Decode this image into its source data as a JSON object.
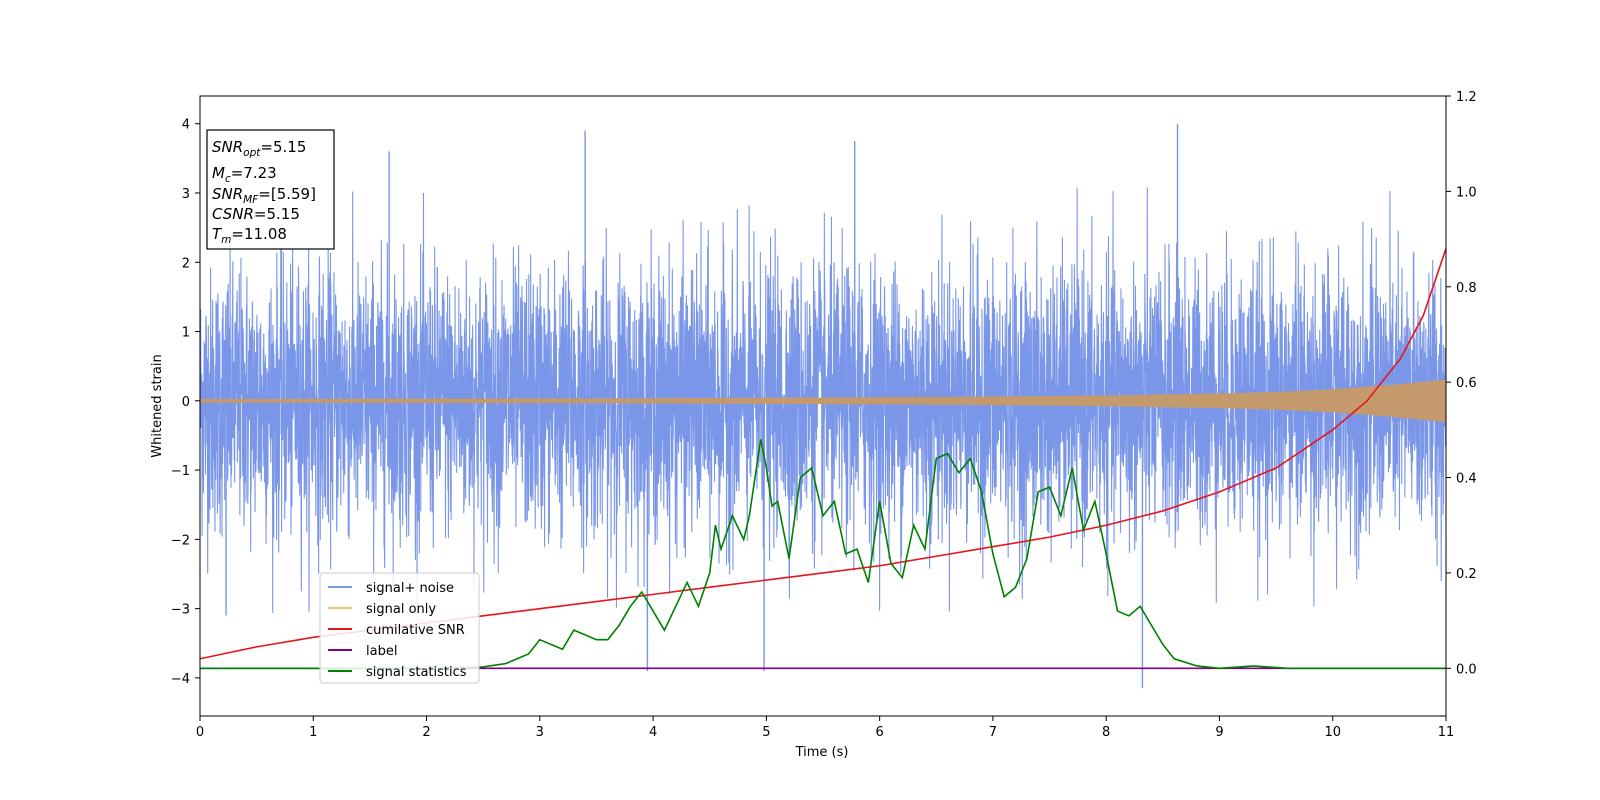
{
  "chart_data": {
    "type": "line",
    "title": "",
    "xlabel": "Time (s)",
    "ylabel": "Whitened strain",
    "xlim": [
      0,
      11
    ],
    "ylim": [
      -4.55,
      4.4
    ],
    "y2lim": [
      -0.1,
      1.2
    ],
    "x_ticks": [
      0,
      1,
      2,
      3,
      4,
      5,
      6,
      7,
      8,
      9,
      10,
      11
    ],
    "y_ticks": [
      -4,
      -3,
      -2,
      -1,
      0,
      1,
      2,
      3,
      4
    ],
    "y2_ticks": [
      "0.0",
      "0.2",
      "0.4",
      "0.6",
      "0.8",
      "1.0",
      "1.2"
    ],
    "legend_position": "lower-left",
    "colors": {
      "noise": "#7a96e8",
      "signal": "#f5c26b",
      "envelope": "#c49a6c",
      "csnr": "#e8141c",
      "label": "#800080",
      "stats": "#008000"
    },
    "legend": [
      {
        "name": "signal+ noise",
        "color": "#7a96e8"
      },
      {
        "name": "signal only",
        "color": "#f5c26b"
      },
      {
        "name": "cumilative SNR",
        "color": "#e8141c"
      },
      {
        "name": "label",
        "color": "#800080"
      },
      {
        "name": "signal statistics",
        "color": "#008000"
      }
    ],
    "signal_envelope": {
      "x": [
        0,
        2,
        4,
        6,
        7,
        8,
        9,
        9.5,
        10,
        10.5,
        11
      ],
      "amplitude": [
        0.02,
        0.025,
        0.03,
        0.045,
        0.055,
        0.07,
        0.1,
        0.12,
        0.16,
        0.22,
        0.3
      ]
    },
    "cumulative_snr": {
      "axis": "right",
      "x": [
        0,
        0.5,
        1,
        1.5,
        2,
        2.5,
        3,
        3.5,
        4,
        4.5,
        5,
        5.5,
        6,
        6.5,
        7,
        7.5,
        8,
        8.5,
        9,
        9.5,
        10,
        10.3,
        10.6,
        10.8,
        11
      ],
      "y": [
        0.02,
        0.045,
        0.065,
        0.08,
        0.095,
        0.11,
        0.125,
        0.14,
        0.155,
        0.17,
        0.185,
        0.2,
        0.215,
        0.235,
        0.255,
        0.275,
        0.3,
        0.33,
        0.37,
        0.42,
        0.5,
        0.56,
        0.65,
        0.74,
        0.88
      ]
    },
    "label_line": {
      "axis": "right",
      "x": [
        0,
        11
      ],
      "y": [
        0,
        0
      ]
    },
    "signal_statistics": {
      "axis": "right",
      "x": [
        0,
        0.5,
        1,
        1.5,
        2,
        2.5,
        2.7,
        2.9,
        3.0,
        3.1,
        3.2,
        3.3,
        3.4,
        3.5,
        3.6,
        3.7,
        3.8,
        3.9,
        4.0,
        4.1,
        4.2,
        4.3,
        4.4,
        4.5,
        4.55,
        4.6,
        4.7,
        4.8,
        4.85,
        4.95,
        5.0,
        5.05,
        5.1,
        5.2,
        5.3,
        5.4,
        5.5,
        5.6,
        5.7,
        5.8,
        5.9,
        6.0,
        6.1,
        6.2,
        6.3,
        6.4,
        6.5,
        6.6,
        6.7,
        6.8,
        6.9,
        7.0,
        7.1,
        7.2,
        7.3,
        7.4,
        7.5,
        7.6,
        7.7,
        7.8,
        7.9,
        8.0,
        8.1,
        8.2,
        8.3,
        8.4,
        8.5,
        8.6,
        8.8,
        9.0,
        9.3,
        9.6,
        10,
        10.5,
        11
      ],
      "y": [
        0.0,
        0.0,
        0.0,
        0.0,
        0.0,
        0.003,
        0.01,
        0.03,
        0.06,
        0.05,
        0.04,
        0.08,
        0.07,
        0.06,
        0.06,
        0.09,
        0.13,
        0.16,
        0.12,
        0.08,
        0.13,
        0.18,
        0.13,
        0.2,
        0.3,
        0.25,
        0.32,
        0.27,
        0.32,
        0.48,
        0.42,
        0.34,
        0.35,
        0.23,
        0.4,
        0.42,
        0.32,
        0.35,
        0.24,
        0.25,
        0.18,
        0.35,
        0.22,
        0.19,
        0.3,
        0.25,
        0.44,
        0.45,
        0.41,
        0.44,
        0.37,
        0.24,
        0.15,
        0.17,
        0.23,
        0.37,
        0.38,
        0.32,
        0.42,
        0.29,
        0.35,
        0.24,
        0.12,
        0.11,
        0.13,
        0.09,
        0.05,
        0.02,
        0.005,
        0.0,
        0.005,
        0.0,
        0.0,
        0.0,
        0.0
      ]
    },
    "noise": {
      "description_range": [
        -2.5,
        2.5
      ],
      "peak_spikes": [
        {
          "x": 0.23,
          "y": -3.1
        },
        {
          "x": 3.4,
          "y": 3.9
        },
        {
          "x": 3.95,
          "y": -3.9
        },
        {
          "x": 4.98,
          "y": -3.9
        },
        {
          "x": 8.32,
          "y": -4.15
        },
        {
          "x": 8.63,
          "y": 4.0
        },
        {
          "x": 1.67,
          "y": 3.6
        },
        {
          "x": 5.78,
          "y": 3.75
        }
      ]
    }
  },
  "annotation": {
    "snr_opt": {
      "var": "SNR",
      "sub": "opt",
      "value": "=5.15"
    },
    "mc": {
      "var": "M",
      "sub": "c",
      "value": "=7.23"
    },
    "snr_mf": {
      "var": "SNR",
      "sub": "MF",
      "value": "=[5.59]"
    },
    "csnr": {
      "var": "CSNR",
      "value": "=5.15"
    },
    "tm": {
      "var": "T",
      "sub": "m",
      "value": "=11.08"
    }
  }
}
